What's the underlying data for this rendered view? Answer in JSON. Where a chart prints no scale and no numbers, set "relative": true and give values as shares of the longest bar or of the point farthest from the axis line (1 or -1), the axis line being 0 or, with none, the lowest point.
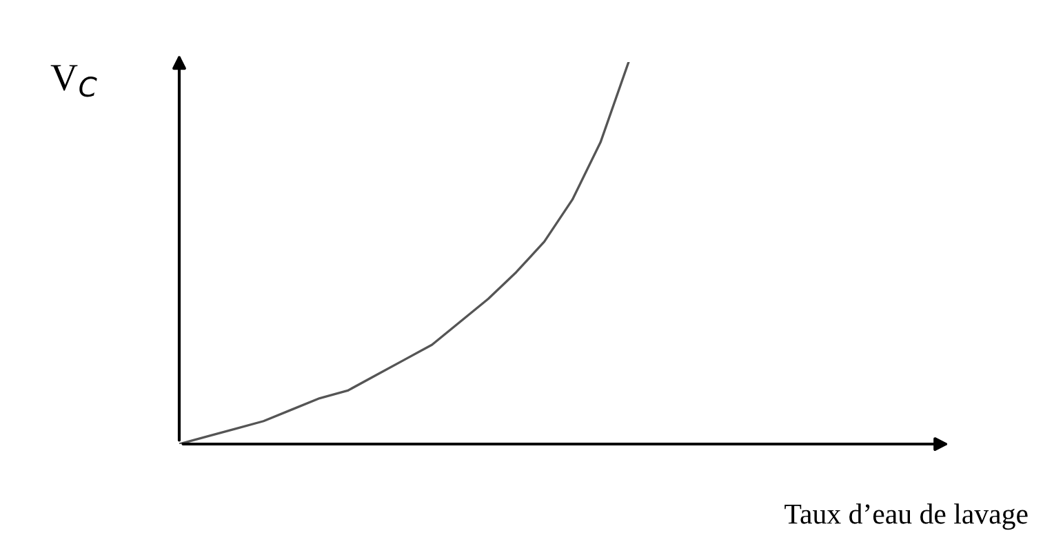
{
  "chart_data": {
    "type": "line",
    "relative": true,
    "xlabel": "Taux d’eau de lavage",
    "ylabel": "V$_{C}$",
    "categories": [
      null,
      null,
      null,
      null,
      null,
      null,
      null,
      null,
      null,
      null,
      null,
      null,
      null,
      null,
      null,
      null,
      null,
      null,
      null,
      null,
      null,
      null,
      null,
      null,
      null,
      null,
      null,
      null
    ],
    "series": [
      {
        "color": "#555555",
        "values": [
          0,
          0.02,
          0.04,
          0.06,
          0.09,
          0.12,
          0.14,
          0.18,
          0.22,
          0.26,
          0.32,
          0.38,
          0.45,
          0.53,
          0.64,
          0.79,
          1,
          null,
          null,
          null,
          null,
          null,
          null,
          null,
          null,
          null,
          null,
          null
        ]
      }
    ],
    "legend": false,
    "marker": "none",
    "line_style": "solid"
  }
}
